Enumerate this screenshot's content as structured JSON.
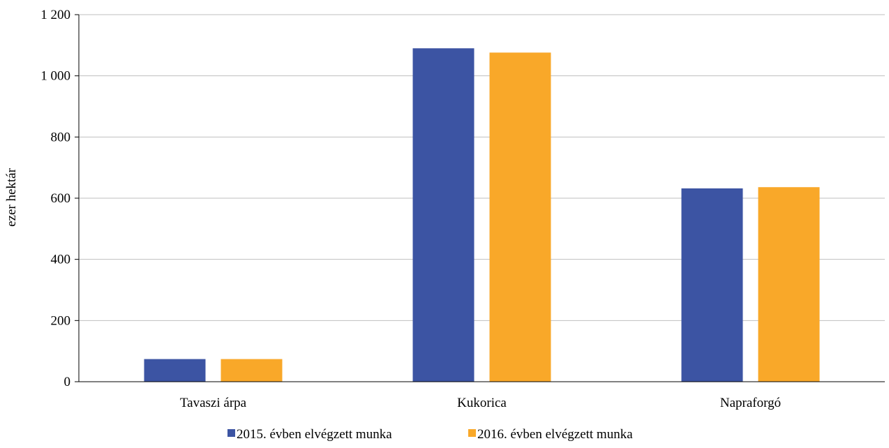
{
  "chart_data": {
    "type": "bar",
    "categories": [
      "Tavaszi árpa",
      "Kukorica",
      "Napraforgó"
    ],
    "series": [
      {
        "name": "2015. évben elvégzett munka",
        "values": [
          74,
          1090,
          632
        ],
        "color": "#3C54A3"
      },
      {
        "name": "2016. évben elvégzett munka",
        "values": [
          74,
          1076,
          636
        ],
        "color": "#F9A829"
      }
    ],
    "title": "",
    "xlabel": "",
    "ylabel": "ezer hektár",
    "ylim": [
      0,
      1200
    ],
    "yticks": [
      0,
      200,
      400,
      600,
      800,
      1000,
      1200
    ],
    "ytick_labels": [
      "0",
      "200",
      "400",
      "600",
      "800",
      "1 000",
      "1 200"
    ],
    "grid": true,
    "legend_position": "bottom",
    "colors": {
      "grid": "#BFBFBF",
      "axis": "#000000"
    }
  }
}
